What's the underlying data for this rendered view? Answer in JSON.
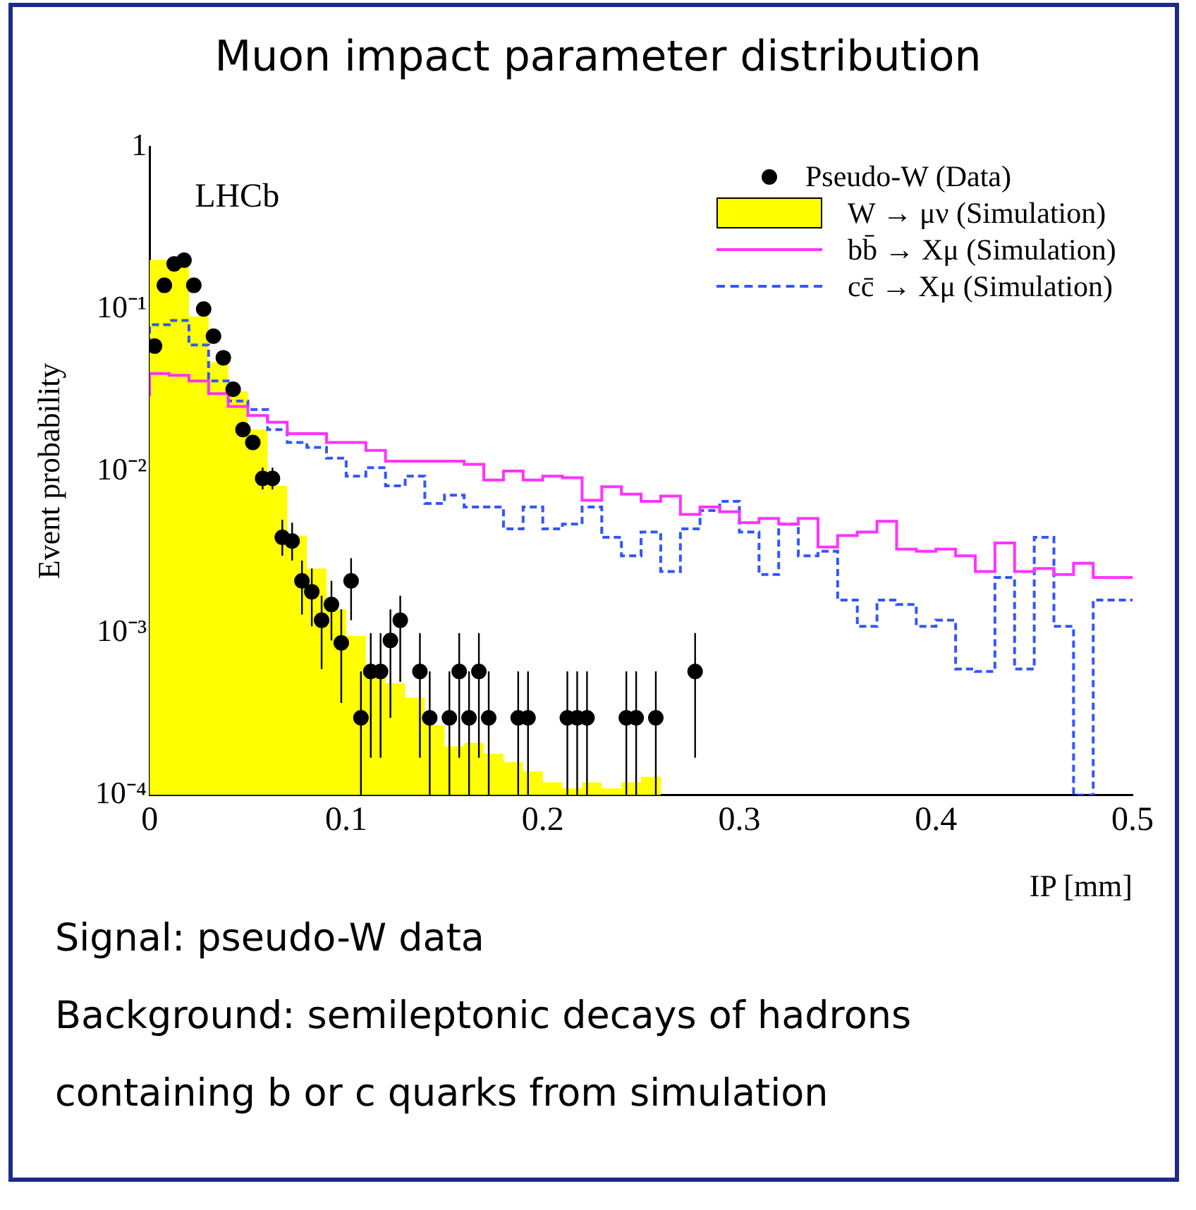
{
  "chart_data": {
    "type": "histogram",
    "title": "Muon impact parameter distribution",
    "xlabel": "IP [mm]",
    "ylabel": "Event probability",
    "annotations": [
      "LHCb",
      "Signal: pseudo-W data",
      "Background: semileptonic decays of hadrons",
      "containing b or c quarks  from simulation"
    ],
    "series": [
      {
        "name": "Pseudo-W (Data)",
        "type": "scatter",
        "color": "#000000",
        "marker": "circle",
        "x": [
          0.0025,
          0.0075,
          0.0125,
          0.0175,
          0.0225,
          0.0275,
          0.0325,
          0.0375,
          0.0425,
          0.0475,
          0.0525,
          0.0575,
          0.0625,
          0.0675,
          0.0725,
          0.0775,
          0.0825,
          0.0875,
          0.0925,
          0.0975,
          0.1025,
          0.1075,
          0.1125,
          0.1175,
          0.1225,
          0.1275,
          0.1375,
          0.1425,
          0.1525,
          0.1575,
          0.1625,
          0.1675,
          0.1725,
          0.1875,
          0.1925,
          0.2125,
          0.2175,
          0.2225,
          0.2425,
          0.2475,
          0.2575,
          0.2775
        ],
        "values": [
          0.059,
          0.14,
          0.19,
          0.2,
          0.14,
          0.1,
          0.068,
          0.05,
          0.032,
          0.018,
          0.015,
          0.009,
          0.009,
          0.0039,
          0.0037,
          0.0021,
          0.0018,
          0.0012,
          0.0015,
          0.00087,
          0.0021,
          0.0003,
          0.00058,
          0.00058,
          0.0009,
          0.0012,
          0.00058,
          0.0003,
          0.0003,
          0.00058,
          0.0003,
          0.00058,
          0.0003,
          0.0003,
          0.0003,
          0.0003,
          0.0003,
          0.0003,
          0.0003,
          0.0003,
          0.0003,
          0.00058
        ],
        "errors": [
          null,
          null,
          null,
          null,
          null,
          null,
          null,
          null,
          null,
          null,
          null,
          [
            0.0077,
            0.0105
          ],
          [
            0.0077,
            0.0105
          ],
          [
            0.003,
            0.005
          ],
          [
            0.0028,
            0.0048
          ],
          [
            0.0013,
            0.0028
          ],
          [
            0.0011,
            0.0025
          ],
          [
            0.0006,
            0.0017
          ],
          [
            0.0009,
            0.0021
          ],
          [
            0.00037,
            0.0014
          ],
          [
            0.0012,
            0.0029
          ],
          [
            0.0001,
            0.00058
          ],
          [
            0.00017,
            0.001
          ],
          [
            0.00017,
            0.001
          ],
          [
            0.0003,
            0.0014
          ],
          [
            0.0005,
            0.0017
          ],
          [
            0.00017,
            0.001
          ],
          [
            0.0001,
            0.00058
          ],
          [
            0.0001,
            0.00058
          ],
          [
            0.00017,
            0.001
          ],
          [
            0.0001,
            0.00058
          ],
          [
            0.00017,
            0.001
          ],
          [
            0.0001,
            0.00058
          ],
          [
            0.0001,
            0.00058
          ],
          [
            0.0001,
            0.00058
          ],
          [
            0.0001,
            0.00058
          ],
          [
            0.0001,
            0.00058
          ],
          [
            0.0001,
            0.00058
          ],
          [
            0.0001,
            0.00058
          ],
          [
            0.0001,
            0.00058
          ],
          [
            0.0001,
            0.00058
          ],
          [
            0.00017,
            0.001
          ]
        ]
      },
      {
        "name": "W → μν (Simulation)",
        "color": "#ffff00",
        "bins": [
          0,
          0.01,
          0.02,
          0.03,
          0.04,
          0.05,
          0.06,
          0.07,
          0.08,
          0.09,
          0.1,
          0.11,
          0.12,
          0.13,
          0.14,
          0.15,
          0.16,
          0.17,
          0.18,
          0.19,
          0.2,
          0.21,
          0.22,
          0.23,
          0.24,
          0.25,
          0.26
        ],
        "values": [
          0.2,
          0.19,
          0.09,
          0.047,
          0.031,
          0.018,
          0.0081,
          0.004,
          0.0025,
          0.0014,
          0.00096,
          0.00059,
          0.00049,
          0.0004,
          0.00027,
          0.0002,
          0.00021,
          0.00018,
          0.00016,
          0.00014,
          0.00012,
          0.00011,
          0.00012,
          0.00011,
          0.00012,
          0.00013
        ]
      },
      {
        "name": "bb̄ → Xμ (Simulation)",
        "type": "step",
        "color": "#ff33ff",
        "line_style": "solid",
        "x": [
          0,
          0.01,
          0.02,
          0.03,
          0.04,
          0.05,
          0.06,
          0.07,
          0.08,
          0.09,
          0.1,
          0.11,
          0.12,
          0.13,
          0.14,
          0.15,
          0.16,
          0.17,
          0.18,
          0.19,
          0.2,
          0.21,
          0.22,
          0.23,
          0.24,
          0.25,
          0.26,
          0.27,
          0.28,
          0.29,
          0.3,
          0.31,
          0.32,
          0.33,
          0.34,
          0.35,
          0.36,
          0.37,
          0.38,
          0.39,
          0.4,
          0.41,
          0.42,
          0.43,
          0.44,
          0.45,
          0.46,
          0.47,
          0.48,
          0.49,
          0.5
        ],
        "values": [
          0.029,
          0.04,
          0.039,
          0.036,
          0.03,
          0.025,
          0.022,
          0.02,
          0.017,
          0.017,
          0.015,
          0.015,
          0.0134,
          0.0115,
          0.0115,
          0.0115,
          0.0115,
          0.011,
          0.0088,
          0.01,
          0.0088,
          0.0093,
          0.0091,
          0.0066,
          0.008,
          0.0072,
          0.0065,
          0.007,
          0.0054,
          0.006,
          0.0056,
          0.0048,
          0.0051,
          0.0047,
          0.0051,
          0.0034,
          0.004,
          0.0042,
          0.0049,
          0.0033,
          0.0032,
          0.0033,
          0.003,
          0.0024,
          0.0036,
          0.0024,
          0.0025,
          0.0023,
          0.0027,
          0.0022,
          0.0022
        ]
      },
      {
        "name": "cc̄ → Xμ (Simulation)",
        "type": "step",
        "color": "#3355ff",
        "line_style": "dashed",
        "x": [
          0,
          0.01,
          0.02,
          0.03,
          0.04,
          0.05,
          0.06,
          0.07,
          0.08,
          0.09,
          0.1,
          0.11,
          0.12,
          0.13,
          0.14,
          0.15,
          0.16,
          0.17,
          0.18,
          0.19,
          0.2,
          0.21,
          0.22,
          0.23,
          0.24,
          0.25,
          0.26,
          0.27,
          0.28,
          0.29,
          0.3,
          0.31,
          0.32,
          0.33,
          0.34,
          0.35,
          0.36,
          0.37,
          0.38,
          0.39,
          0.4,
          0.41,
          0.42,
          0.43,
          0.44,
          0.45,
          0.46,
          0.47,
          0.48,
          0.49,
          0.5
        ],
        "values": [
          0.06,
          0.08,
          0.085,
          0.06,
          0.036,
          0.027,
          0.024,
          0.018,
          0.015,
          0.014,
          0.012,
          0.0093,
          0.0105,
          0.0081,
          0.0093,
          0.0063,
          0.0071,
          0.006,
          0.006,
          0.0044,
          0.006,
          0.0044,
          0.0047,
          0.006,
          0.0039,
          0.003,
          0.0042,
          0.0024,
          0.0044,
          0.0057,
          0.0065,
          0.0042,
          0.0023,
          0.0047,
          0.003,
          0.0032,
          0.0016,
          0.0011,
          0.0016,
          0.0015,
          0.0011,
          0.0012,
          0.0006,
          0.00058,
          0.0022,
          0.0006,
          0.0039,
          0.0011,
          0.0001,
          0.0016,
          0.0016
        ]
      }
    ],
    "log": "y",
    "xlim": [
      0,
      0.5
    ],
    "xticks": [
      0,
      0.1,
      0.2,
      0.3,
      0.4,
      0.5
    ],
    "ylim": [
      0.0001,
      1
    ],
    "yticks": [
      {
        "value": 0.0001,
        "label": "10⁻⁴"
      },
      {
        "value": 0.001,
        "label": "10⁻³"
      },
      {
        "value": 0.01,
        "label": "10⁻²"
      },
      {
        "value": 0.1,
        "label": "10⁻¹"
      },
      {
        "value": 1,
        "label": "1"
      }
    ],
    "grid": false,
    "legend": "top right"
  }
}
